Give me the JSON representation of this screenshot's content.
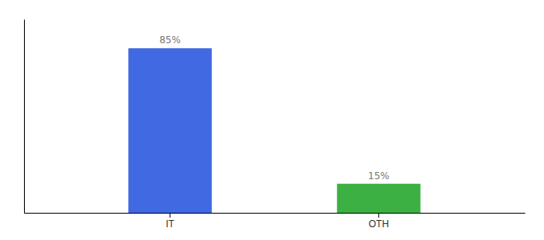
{
  "chart_data": {
    "type": "bar",
    "categories": [
      "IT",
      "OTH"
    ],
    "values": [
      85,
      15
    ],
    "value_labels": [
      "85%",
      "15%"
    ],
    "colors": [
      "#4169e1",
      "#3cb043"
    ],
    "ylim": [
      0,
      100
    ],
    "data_labels": true,
    "tick_labels": "x"
  }
}
